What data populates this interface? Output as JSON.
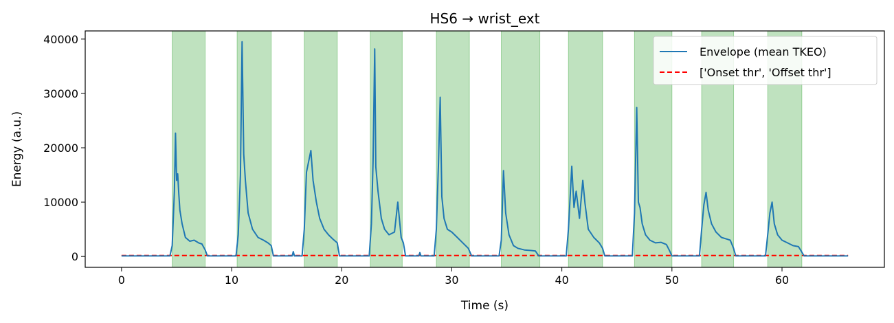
{
  "chart_data": {
    "type": "line",
    "title": "HS6 → wrist_ext",
    "xlabel": "Time (s)",
    "ylabel": "Energy (a.u.)",
    "xlim": [
      -3.3,
      69.3
    ],
    "ylim": [
      -2000,
      41500
    ],
    "xticks": [
      0,
      10,
      20,
      30,
      40,
      50,
      60
    ],
    "yticks": [
      0,
      10000,
      20000,
      30000,
      40000
    ],
    "grid": false,
    "legend_position": "top-right",
    "colors": {
      "envelope": "#1f77b4",
      "onset": "#ff0000",
      "offset": "#ff7f0e",
      "band_fill": "#2ca02c"
    },
    "series": [
      {
        "name": "Envelope (mean TKEO)",
        "style": "solid",
        "x": [
          0,
          4.4,
          4.6,
          4.8,
          4.9,
          5.0,
          5.1,
          5.2,
          5.3,
          5.5,
          5.8,
          6.2,
          6.6,
          7.0,
          7.3,
          7.6,
          7.8,
          10.4,
          10.6,
          10.8,
          10.95,
          11.1,
          11.25,
          11.5,
          11.9,
          12.4,
          12.9,
          13.3,
          13.6,
          13.8,
          15.5,
          15.6,
          15.7,
          16.4,
          16.6,
          16.8,
          17.0,
          17.2,
          17.4,
          17.7,
          18.0,
          18.4,
          18.8,
          19.2,
          19.6,
          19.8,
          22.5,
          22.7,
          22.85,
          23.0,
          23.1,
          23.3,
          23.6,
          23.9,
          24.3,
          24.8,
          25.1,
          25.4,
          25.6,
          25.8,
          27.0,
          27.1,
          27.2,
          28.4,
          28.6,
          28.8,
          28.95,
          29.1,
          29.3,
          29.6,
          30.0,
          30.5,
          31.0,
          31.5,
          31.8,
          34.3,
          34.5,
          34.7,
          34.9,
          35.2,
          35.6,
          36.0,
          36.6,
          37.2,
          37.6,
          37.9,
          40.4,
          40.6,
          40.9,
          41.1,
          41.3,
          41.6,
          41.9,
          42.1,
          42.4,
          42.9,
          43.4,
          43.7,
          43.9,
          46.4,
          46.6,
          46.8,
          46.95,
          47.1,
          47.3,
          47.6,
          48.0,
          48.5,
          49.0,
          49.5,
          49.8,
          50.0,
          52.5,
          52.7,
          52.9,
          53.1,
          53.3,
          53.6,
          54.0,
          54.5,
          55.0,
          55.3,
          55.6,
          55.8,
          58.5,
          58.7,
          58.9,
          59.1,
          59.3,
          59.6,
          60.0,
          60.5,
          61.0,
          61.5,
          61.8,
          62.0,
          66.0
        ],
        "y": [
          100,
          100,
          2000,
          12000,
          22700,
          14000,
          15200,
          11500,
          8500,
          6000,
          3500,
          2800,
          3000,
          2500,
          2300,
          1200,
          100,
          100,
          4000,
          15000,
          39500,
          18800,
          14000,
          8000,
          5000,
          3500,
          3000,
          2500,
          2000,
          100,
          100,
          900,
          100,
          100,
          5000,
          15500,
          17500,
          19500,
          14000,
          10000,
          7000,
          5000,
          4000,
          3200,
          2500,
          100,
          100,
          6000,
          17500,
          38200,
          16500,
          12000,
          7000,
          5000,
          4000,
          4500,
          10000,
          3500,
          2500,
          100,
          100,
          700,
          100,
          100,
          5000,
          17500,
          29300,
          11000,
          7000,
          5000,
          4500,
          3500,
          2500,
          1500,
          100,
          100,
          3000,
          15800,
          8000,
          4000,
          2000,
          1500,
          1200,
          1100,
          1000,
          100,
          100,
          5000,
          16600,
          9000,
          12000,
          7000,
          14000,
          9800,
          5000,
          3500,
          2500,
          1500,
          100,
          100,
          8000,
          27400,
          10000,
          9000,
          6000,
          4000,
          3000,
          2500,
          2600,
          2200,
          1000,
          100,
          100,
          5000,
          9500,
          11800,
          8500,
          6000,
          4500,
          3500,
          3200,
          3000,
          1500,
          100,
          100,
          4000,
          8000,
          10000,
          6000,
          4000,
          3000,
          2500,
          2000,
          1800,
          800,
          100,
          100
        ]
      },
      {
        "name": "['Onset thr', 'Offset thr']",
        "style": "dashed",
        "x": [
          0,
          66
        ],
        "onset_y": 180,
        "offset_y": 150
      }
    ],
    "bands": [
      [
        4.6,
        7.6
      ],
      [
        10.5,
        13.6
      ],
      [
        16.6,
        19.6
      ],
      [
        22.6,
        25.5
      ],
      [
        28.6,
        31.6
      ],
      [
        34.5,
        38.0
      ],
      [
        40.6,
        43.7
      ],
      [
        46.6,
        50.0
      ],
      [
        52.7,
        55.6
      ],
      [
        58.7,
        61.8
      ]
    ]
  }
}
